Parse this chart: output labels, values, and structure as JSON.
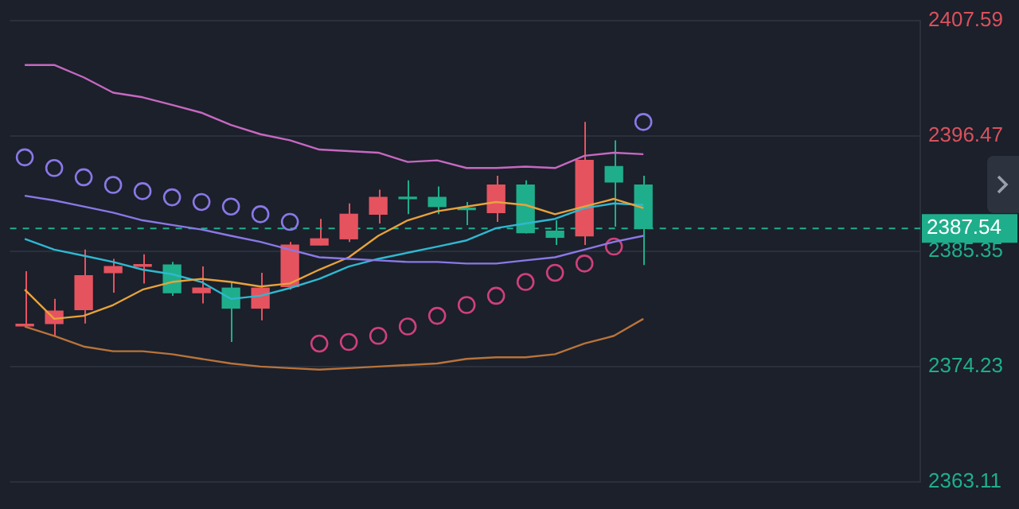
{
  "chart_data": {
    "type": "candlestick",
    "categories": [
      null,
      null,
      null,
      null,
      null,
      null,
      null,
      null,
      null,
      null,
      null,
      null,
      null,
      null,
      null,
      null,
      null,
      null,
      null,
      null,
      null,
      null
    ],
    "ohlc": [
      [
        2378.15,
        2383.42,
        2378.09,
        2378.23
      ],
      [
        2378.38,
        2380.75,
        2377.19,
        2379.57
      ],
      [
        2379.72,
        2385.5,
        2378.38,
        2382.98
      ],
      [
        2383.27,
        2384.61,
        2381.35,
        2383.87
      ],
      [
        2383.9,
        2385.05,
        2382.24,
        2384.02
      ],
      [
        2384.02,
        2384.31,
        2381.05,
        2381.35
      ],
      [
        2381.35,
        2383.87,
        2380.31,
        2381.79
      ],
      [
        2381.79,
        2382.38,
        2376.6,
        2379.86
      ],
      [
        2379.86,
        2383.27,
        2378.68,
        2381.79
      ],
      [
        2381.94,
        2386.24,
        2381.64,
        2385.94
      ],
      [
        2385.94,
        2388.46,
        2385.9,
        2386.54
      ],
      [
        2386.54,
        2389.95,
        2386.24,
        2388.91
      ],
      [
        2388.91,
        2391.28,
        2388.02,
        2390.54
      ],
      [
        2390.54,
        2392.17,
        2388.91,
        2390.4
      ],
      [
        2390.54,
        2391.58,
        2388.91,
        2389.65
      ],
      [
        2389.43,
        2390.09,
        2387.87,
        2389.35
      ],
      [
        2389.06,
        2392.62,
        2388.17,
        2391.73
      ],
      [
        2391.73,
        2392.17,
        2387.05,
        2387.13
      ],
      [
        2387.28,
        2388.32,
        2385.94,
        2386.68
      ],
      [
        2386.83,
        2397.8,
        2385.94,
        2394.1
      ],
      [
        2393.5,
        2396.03,
        2387.72,
        2392.02
      ],
      [
        2391.73,
        2392.62,
        2384.02,
        2387.54
      ]
    ],
    "colors": [
      "#e5535f",
      "#e5535f",
      "#e5535f",
      "#e5535f",
      "#e5535f",
      "#1fae8c",
      "#e5535f",
      "#1fae8c",
      "#e5535f",
      "#e5535f",
      "#e5535f",
      "#e5535f",
      "#e5535f",
      "#1fae8c",
      "#1fae8c",
      "#1fae8c",
      "#e5535f",
      "#1fae8c",
      "#1fae8c",
      "#e5535f",
      "#1fae8c",
      "#1fae8c"
    ],
    "series": [
      {
        "type": "line",
        "color": "#c668c0",
        "values": [
          2403.29,
          2403.29,
          2402.1,
          2400.62,
          2400.18,
          2399.44,
          2398.69,
          2397.51,
          2396.62,
          2396.03,
          2395.14,
          2394.99,
          2394.84,
          2393.95,
          2394.1,
          2393.36,
          2393.36,
          2393.5,
          2393.36,
          2394.54,
          2394.84,
          2394.69
        ]
      },
      {
        "type": "line",
        "color": "#8a78e6",
        "values": [
          2390.69,
          2390.24,
          2389.65,
          2389.06,
          2388.32,
          2387.87,
          2387.43,
          2386.83,
          2386.24,
          2385.5,
          2384.76,
          2384.61,
          2384.46,
          2384.31,
          2384.31,
          2384.16,
          2384.16,
          2384.46,
          2384.76,
          2385.5,
          2386.24,
          2386.83
        ]
      },
      {
        "type": "line",
        "color": "#b8733a",
        "values": [
          2378.09,
          2377.19,
          2376.16,
          2375.71,
          2375.71,
          2375.42,
          2374.97,
          2374.53,
          2374.23,
          2374.08,
          2373.93,
          2374.08,
          2374.23,
          2374.38,
          2374.53,
          2374.97,
          2375.12,
          2375.12,
          2375.42,
          2376.45,
          2377.19,
          2378.83
        ]
      },
      {
        "type": "line",
        "color": "#e8a23a",
        "values": [
          2381.64,
          2378.83,
          2379.12,
          2380.16,
          2381.64,
          2382.38,
          2382.68,
          2382.38,
          2381.94,
          2382.24,
          2383.57,
          2384.76,
          2386.83,
          2388.32,
          2389.2,
          2389.65,
          2390.09,
          2389.8,
          2388.91,
          2389.65,
          2390.39,
          2389.5
        ]
      },
      {
        "type": "line",
        "color": "#2fb8d0",
        "values": [
          2386.54,
          2385.5,
          2384.91,
          2384.31,
          2383.57,
          2383.13,
          2382.38,
          2380.75,
          2381.05,
          2381.79,
          2382.68,
          2383.87,
          2384.61,
          2385.2,
          2385.79,
          2386.39,
          2387.57,
          2388.02,
          2388.46,
          2389.5,
          2389.95,
          2389.8
        ]
      },
      {
        "type": "scatter",
        "marker": "circle",
        "colors": [
          "#8a78e6",
          "#8a78e6",
          "#8a78e6",
          "#8a78e6",
          "#8a78e6",
          "#8a78e6",
          "#8a78e6",
          "#8a78e6",
          "#8a78e6",
          "#8a78e6",
          "#d0407a",
          "#d0407a",
          "#d0407a",
          "#d0407a",
          "#d0407a",
          "#d0407a",
          "#d0407a",
          "#d0407a",
          "#d0407a",
          "#d0407a",
          "#d0407a",
          "#8a78e6"
        ],
        "values": [
          2394.39,
          2393.36,
          2392.47,
          2391.73,
          2391.13,
          2390.54,
          2390.09,
          2389.65,
          2388.91,
          2388.17,
          2376.45,
          2376.6,
          2377.19,
          2378.09,
          2379.12,
          2380.16,
          2381.05,
          2382.38,
          2383.27,
          2384.16,
          2385.79,
          2397.8
        ]
      }
    ],
    "ylim": [
      2363.11,
      2407.59
    ],
    "yticks": [
      2363.11,
      2374.23,
      2385.35,
      2396.47,
      2407.59
    ],
    "ref_lines": [
      {
        "axis": "y",
        "value": 2387.54,
        "label": "2387.54",
        "color": "#1fae8c",
        "line_style": "dashed"
      }
    ],
    "grid": "y",
    "legend": false,
    "tick_labels": "y"
  }
}
